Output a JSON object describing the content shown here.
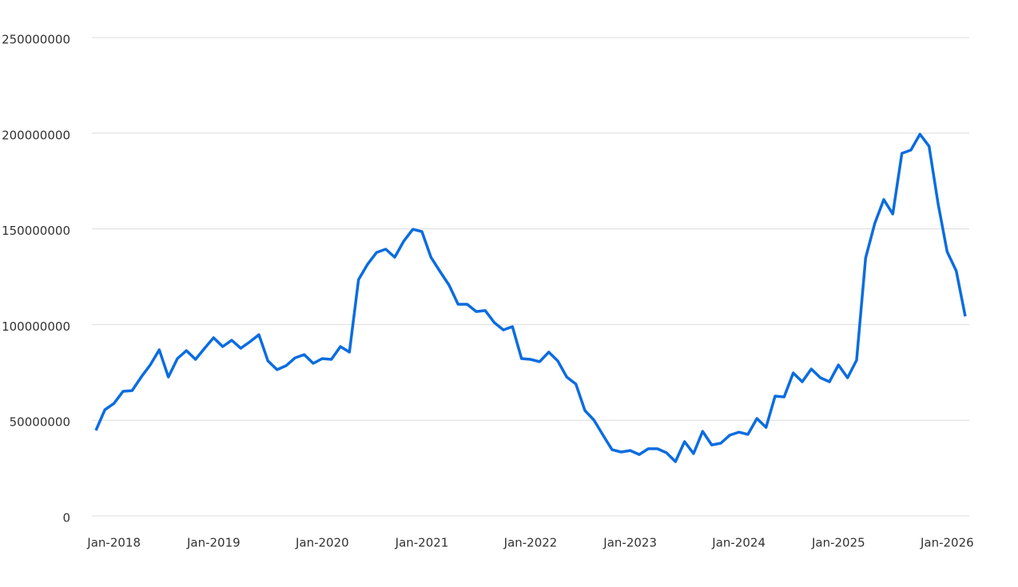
{
  "chart_data": {
    "type": "line",
    "categories": [
      null,
      null,
      "Jan-2018",
      null,
      null,
      null,
      null,
      null,
      null,
      null,
      null,
      null,
      null,
      "Jan-2019",
      null,
      null,
      null,
      null,
      null,
      null,
      null,
      null,
      null,
      null,
      null,
      "Jan-2020",
      null,
      null,
      null,
      null,
      null,
      null,
      null,
      null,
      null,
      null,
      "Jan-2021",
      null,
      null,
      null,
      null,
      null,
      null,
      null,
      null,
      null,
      null,
      null,
      "Jan-2022",
      null,
      null,
      null,
      null,
      null,
      null,
      null,
      null,
      null,
      null,
      "Jan-2023",
      null,
      null,
      null,
      null,
      null,
      null,
      null,
      null,
      null,
      null,
      null,
      "Jan-2024",
      null,
      null,
      null,
      null,
      null,
      null,
      null,
      null,
      null,
      null,
      "Jan-2025",
      null,
      null,
      null,
      null,
      null,
      null,
      null,
      null,
      null,
      null,
      null,
      "Jan-2026",
      null,
      null
    ],
    "series": [
      {
        "color": "#0a6ce0",
        "values": [
          44.7,
          55.5,
          58.8,
          65.1,
          65.5,
          72.6,
          78.9,
          86.8,
          72.6,
          82.2,
          86.4,
          81.8,
          87.6,
          93.1,
          88.5,
          91.8,
          87.6,
          91.0,
          94.7,
          81.0,
          76.4,
          78.5,
          82.6,
          84.3,
          79.7,
          82.2,
          81.8,
          88.5,
          85.6,
          123.5,
          131.5,
          137.7,
          139.4,
          135.2,
          143.6,
          149.8,
          148.6,
          135.2,
          127.7,
          120.6,
          110.6,
          110.6,
          106.8,
          107.3,
          101.0,
          97.2,
          98.9,
          82.2,
          81.8,
          80.6,
          85.6,
          81.0,
          72.6,
          68.9,
          55.1,
          50.1,
          42.2,
          34.6,
          33.4,
          34.2,
          32.1,
          35.1,
          35.1,
          33.0,
          28.4,
          38.8,
          32.6,
          44.2,
          37.1,
          38.0,
          42.2,
          43.8,
          42.6,
          50.9,
          46.3,
          62.6,
          62.2,
          74.7,
          70.1,
          76.8,
          72.2,
          70.1,
          78.9,
          72.2,
          81.4,
          134.8,
          152.8,
          165.3,
          157.8,
          189.5,
          191.2,
          199.5,
          193.2,
          163.2,
          138.1,
          128.1,
          104.3
        ]
      }
    ],
    "ylim": [
      0,
      250
    ],
    "yticks": [
      {
        "value": 0,
        "label": "0"
      },
      {
        "value": 50,
        "label": "50000000"
      },
      {
        "value": 100,
        "label": "100000000"
      },
      {
        "value": 150,
        "label": "150000000"
      },
      {
        "value": 200,
        "label": "200000000"
      },
      {
        "value": 250,
        "label": "250000000"
      }
    ],
    "grid": true
  }
}
